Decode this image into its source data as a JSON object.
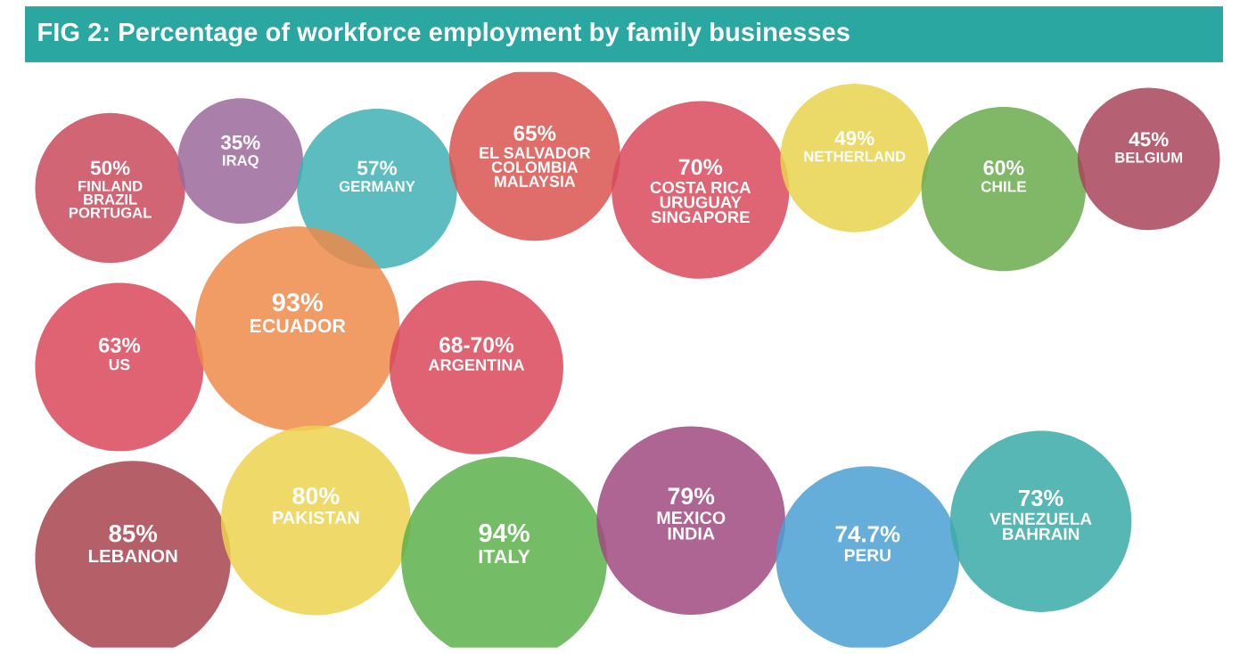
{
  "chart_data": {
    "type": "other",
    "title": "FIG 2: Percentage of workforce employment by family businesses",
    "categories": [
      "FINLAND\nBRAZIL\nPORTUGAL",
      "IRAQ",
      "GERMANY",
      "EL SALVADOR\nCOLOMBIA\nMALAYSIA",
      "COSTA RICA\nURUGUAY\nSINGAPORE",
      "NETHERLAND",
      "CHILE",
      "BELGIUM",
      "US",
      "ECUADOR",
      "ARGENTINA",
      "LEBANON",
      "PAKISTAN",
      "ITALY",
      "MEXICO\nINDIA",
      "PERU",
      "VENEZUELA\nBAHRAIN"
    ],
    "values": [
      50,
      35,
      57,
      65,
      70,
      49,
      60,
      45,
      63,
      93,
      null,
      85,
      80,
      94,
      79,
      74.7,
      73
    ],
    "value_labels": [
      "50%",
      "35%",
      "57%",
      "65%",
      "70%",
      "49%",
      "60%",
      "45%",
      "63%",
      "93%",
      "68-70%",
      "85%",
      "80%",
      "94%",
      "79%",
      "74.7%",
      "73%"
    ],
    "colors": [
      "#c94a5c",
      "#9b6a9b",
      "#3fb0b5",
      "#d9534f",
      "#d94a5c",
      "#e8d44d",
      "#6aab4c",
      "#a8445a",
      "#d9485a",
      "#ee8a4a",
      "#d9485a",
      "#a8444f",
      "#ecd34f",
      "#5cb04a",
      "#a04a80",
      "#4aa0d4",
      "#3aaaa8"
    ]
  }
}
